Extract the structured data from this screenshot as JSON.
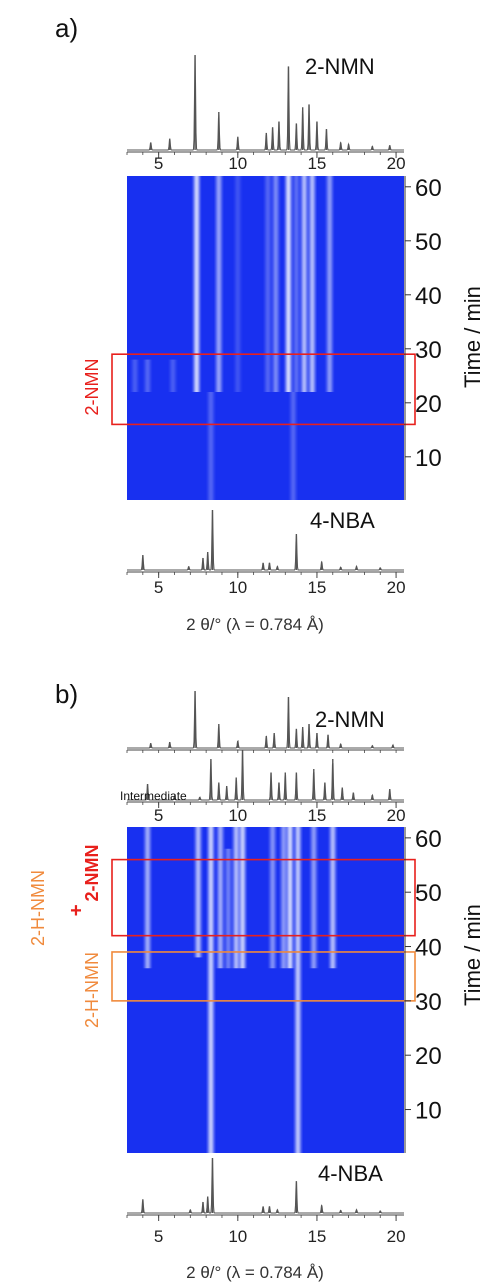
{
  "panel_a": {
    "label": "a)",
    "axis_label": "2 θ/° (λ = 0.784 Å)",
    "time_axis_label": "Time / min",
    "box_label": "2-NMN",
    "top_pattern_label": "2-NMN",
    "bottom_pattern_label": "4-NBA"
  },
  "panel_b": {
    "label": "b)",
    "axis_label": "2 θ/° (λ = 0.784 Å)",
    "time_axis_label": "Time / min",
    "top_pattern_label": "2-NMN",
    "middle_pattern_label": "Intermediate",
    "bottom_pattern_label": "4-NBA",
    "box1_label_a": "2-H-NMN",
    "box1_label_plus": "+",
    "box1_label_b": "2-NMN",
    "box2_label": "2-H-NMN"
  },
  "colors": {
    "heatmap_bg": "#1830f0",
    "stripe": "#eef2ff",
    "box_red": "#e8201c",
    "box_orange": "#f08a3c",
    "label_red": "#e8201c",
    "label_orange": "#f08a3c",
    "pattern_line": "#555555"
  },
  "chart_data": [
    {
      "type": "line",
      "name": "2-NMN",
      "xlim": [
        3,
        20.5
      ],
      "xticks": [
        5,
        10,
        15,
        20
      ],
      "peaks": [
        {
          "x": 4.5,
          "h": 0.08
        },
        {
          "x": 5.7,
          "h": 0.12
        },
        {
          "x": 7.3,
          "h": 1.0
        },
        {
          "x": 8.8,
          "h": 0.4
        },
        {
          "x": 10.0,
          "h": 0.14
        },
        {
          "x": 11.8,
          "h": 0.18
        },
        {
          "x": 12.2,
          "h": 0.24
        },
        {
          "x": 12.6,
          "h": 0.3
        },
        {
          "x": 13.2,
          "h": 0.88
        },
        {
          "x": 13.7,
          "h": 0.28
        },
        {
          "x": 14.1,
          "h": 0.45
        },
        {
          "x": 14.5,
          "h": 0.48
        },
        {
          "x": 15.0,
          "h": 0.3
        },
        {
          "x": 15.6,
          "h": 0.22
        },
        {
          "x": 16.5,
          "h": 0.08
        },
        {
          "x": 17.0,
          "h": 0.06
        },
        {
          "x": 18.5,
          "h": 0.04
        },
        {
          "x": 19.6,
          "h": 0.05
        }
      ]
    },
    {
      "type": "heatmap",
      "xlim": [
        3,
        20.5
      ],
      "ylim": [
        2,
        62
      ],
      "xticks": [],
      "yticks": [
        10,
        20,
        30,
        40,
        50,
        60
      ],
      "box": {
        "y0": 16,
        "y1": 29,
        "color": "red"
      },
      "stripes": [
        {
          "x": 3.5,
          "y0": 22,
          "y1": 28,
          "i": 0.25
        },
        {
          "x": 4.3,
          "y0": 22,
          "y1": 28,
          "i": 0.3
        },
        {
          "x": 5.9,
          "y0": 22,
          "y1": 28,
          "i": 0.25
        },
        {
          "x": 7.4,
          "y0": 22,
          "y1": 62,
          "i": 0.95
        },
        {
          "x": 8.8,
          "y0": 22,
          "y1": 62,
          "i": 0.65
        },
        {
          "x": 10.0,
          "y0": 22,
          "y1": 62,
          "i": 0.2
        },
        {
          "x": 11.9,
          "y0": 22,
          "y1": 62,
          "i": 0.3
        },
        {
          "x": 12.4,
          "y0": 22,
          "y1": 62,
          "i": 0.5
        },
        {
          "x": 13.2,
          "y0": 22,
          "y1": 62,
          "i": 0.98
        },
        {
          "x": 13.7,
          "y0": 22,
          "y1": 62,
          "i": 0.35
        },
        {
          "x": 14.2,
          "y0": 22,
          "y1": 62,
          "i": 0.8
        },
        {
          "x": 14.7,
          "y0": 22,
          "y1": 62,
          "i": 0.8
        },
        {
          "x": 15.8,
          "y0": 22,
          "y1": 62,
          "i": 0.6
        },
        {
          "x": 8.3,
          "y0": 2,
          "y1": 22,
          "i": 0.3
        },
        {
          "x": 13.5,
          "y0": 2,
          "y1": 22,
          "i": 0.3
        }
      ]
    },
    {
      "type": "line",
      "name": "4-NBA",
      "xlim": [
        3,
        20.5
      ],
      "xticks": [
        5,
        10,
        15,
        20
      ],
      "peaks": [
        {
          "x": 4.0,
          "h": 0.25
        },
        {
          "x": 6.9,
          "h": 0.06
        },
        {
          "x": 7.8,
          "h": 0.2
        },
        {
          "x": 8.1,
          "h": 0.3
        },
        {
          "x": 8.4,
          "h": 1.0
        },
        {
          "x": 11.6,
          "h": 0.12
        },
        {
          "x": 12.0,
          "h": 0.12
        },
        {
          "x": 12.5,
          "h": 0.06
        },
        {
          "x": 13.7,
          "h": 0.6
        },
        {
          "x": 15.3,
          "h": 0.14
        },
        {
          "x": 16.5,
          "h": 0.05
        },
        {
          "x": 17.5,
          "h": 0.06
        },
        {
          "x": 19.0,
          "h": 0.04
        }
      ]
    },
    {
      "type": "line",
      "name": "2-NMN",
      "xlim": [
        3,
        20.5
      ],
      "xticks": [],
      "peaks": [
        {
          "x": 4.5,
          "h": 0.08
        },
        {
          "x": 5.7,
          "h": 0.1
        },
        {
          "x": 7.3,
          "h": 0.95
        },
        {
          "x": 8.8,
          "h": 0.4
        },
        {
          "x": 10.0,
          "h": 0.12
        },
        {
          "x": 11.8,
          "h": 0.2
        },
        {
          "x": 12.3,
          "h": 0.25
        },
        {
          "x": 13.2,
          "h": 0.85
        },
        {
          "x": 13.7,
          "h": 0.32
        },
        {
          "x": 14.1,
          "h": 0.35
        },
        {
          "x": 14.5,
          "h": 0.4
        },
        {
          "x": 15.0,
          "h": 0.25
        },
        {
          "x": 15.7,
          "h": 0.22
        },
        {
          "x": 16.5,
          "h": 0.07
        },
        {
          "x": 18.5,
          "h": 0.04
        },
        {
          "x": 19.8,
          "h": 0.05
        }
      ]
    },
    {
      "type": "line",
      "name": "Intermediate",
      "xlim": [
        3,
        20.5
      ],
      "xticks": [
        5,
        10,
        15,
        20
      ],
      "peaks": [
        {
          "x": 4.3,
          "h": 0.32
        },
        {
          "x": 6.0,
          "h": 0.08
        },
        {
          "x": 7.6,
          "h": 0.06
        },
        {
          "x": 8.3,
          "h": 0.82
        },
        {
          "x": 8.8,
          "h": 0.35
        },
        {
          "x": 9.3,
          "h": 0.28
        },
        {
          "x": 9.9,
          "h": 0.45
        },
        {
          "x": 10.3,
          "h": 1.0
        },
        {
          "x": 12.1,
          "h": 0.55
        },
        {
          "x": 12.6,
          "h": 0.35
        },
        {
          "x": 13.0,
          "h": 0.55
        },
        {
          "x": 13.7,
          "h": 0.55
        },
        {
          "x": 14.8,
          "h": 0.62
        },
        {
          "x": 15.5,
          "h": 0.35
        },
        {
          "x": 16.0,
          "h": 0.82
        },
        {
          "x": 16.6,
          "h": 0.25
        },
        {
          "x": 17.3,
          "h": 0.15
        },
        {
          "x": 18.5,
          "h": 0.1
        },
        {
          "x": 19.6,
          "h": 0.22
        }
      ]
    },
    {
      "type": "heatmap",
      "xlim": [
        3,
        20.5
      ],
      "ylim": [
        2,
        62
      ],
      "xticks": [],
      "yticks": [
        10,
        20,
        30,
        40,
        50,
        60
      ],
      "boxes": [
        {
          "y0": 42,
          "y1": 56,
          "color": "red"
        },
        {
          "y0": 30,
          "y1": 39,
          "color": "orange"
        }
      ],
      "stripes": [
        {
          "x": 4.3,
          "y0": 36,
          "y1": 62,
          "i": 0.7
        },
        {
          "x": 7.5,
          "y0": 38,
          "y1": 62,
          "i": 0.8
        },
        {
          "x": 8.3,
          "y0": 2,
          "y1": 62,
          "i": 0.9
        },
        {
          "x": 8.9,
          "y0": 36,
          "y1": 62,
          "i": 0.7
        },
        {
          "x": 9.4,
          "y0": 36,
          "y1": 58,
          "i": 0.45
        },
        {
          "x": 9.9,
          "y0": 36,
          "y1": 62,
          "i": 0.8
        },
        {
          "x": 10.3,
          "y0": 36,
          "y1": 62,
          "i": 0.9
        },
        {
          "x": 12.2,
          "y0": 36,
          "y1": 62,
          "i": 0.55
        },
        {
          "x": 12.9,
          "y0": 36,
          "y1": 62,
          "i": 0.6
        },
        {
          "x": 13.3,
          "y0": 36,
          "y1": 62,
          "i": 0.95
        },
        {
          "x": 13.8,
          "y0": 2,
          "y1": 62,
          "i": 0.85
        },
        {
          "x": 14.8,
          "y0": 36,
          "y1": 62,
          "i": 0.6
        },
        {
          "x": 16.0,
          "y0": 36,
          "y1": 62,
          "i": 0.8
        }
      ]
    },
    {
      "type": "line",
      "name": "4-NBA",
      "xlim": [
        3,
        20.5
      ],
      "xticks": [
        5,
        10,
        15,
        20
      ],
      "peaks": [
        {
          "x": 4.0,
          "h": 0.25
        },
        {
          "x": 7.0,
          "h": 0.06
        },
        {
          "x": 7.8,
          "h": 0.2
        },
        {
          "x": 8.1,
          "h": 0.3
        },
        {
          "x": 8.4,
          "h": 1.0
        },
        {
          "x": 11.6,
          "h": 0.12
        },
        {
          "x": 12.0,
          "h": 0.12
        },
        {
          "x": 12.5,
          "h": 0.06
        },
        {
          "x": 13.7,
          "h": 0.58
        },
        {
          "x": 15.3,
          "h": 0.14
        },
        {
          "x": 16.5,
          "h": 0.05
        },
        {
          "x": 17.5,
          "h": 0.06
        },
        {
          "x": 19.0,
          "h": 0.04
        }
      ]
    }
  ]
}
